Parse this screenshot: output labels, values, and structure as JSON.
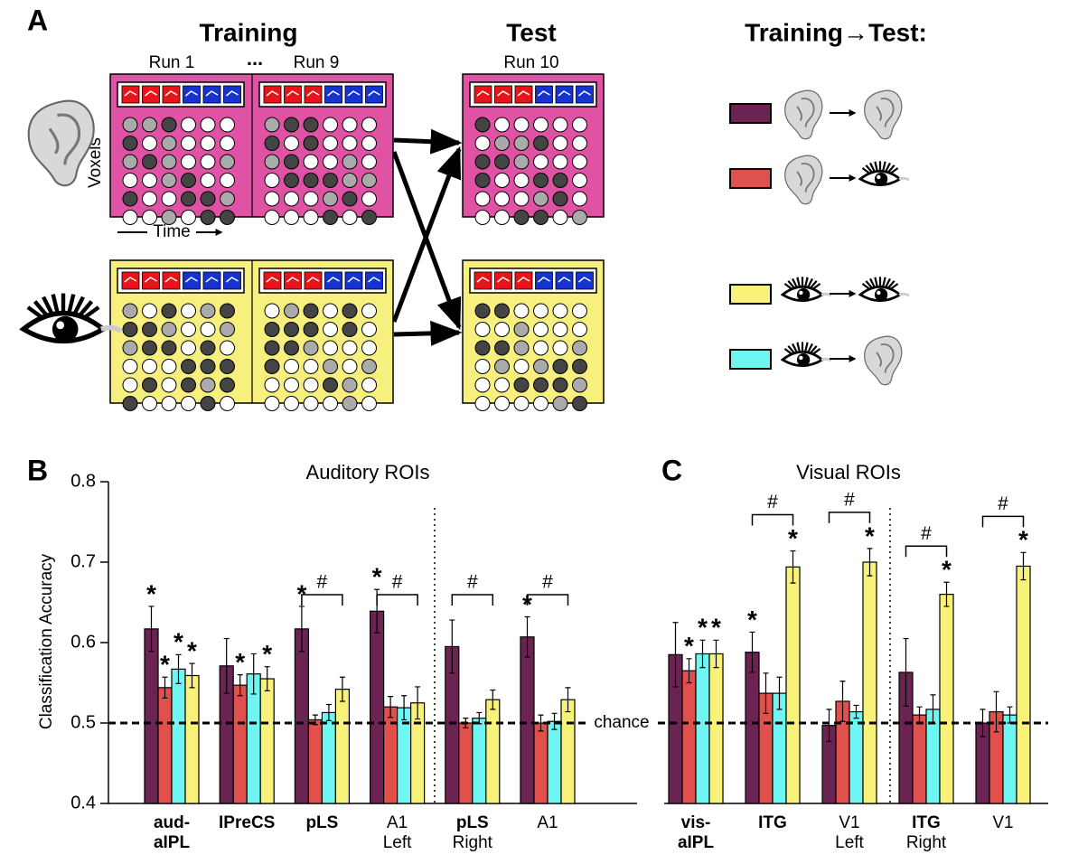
{
  "panel_a": {
    "label": "A",
    "training_title": "Training",
    "test_title": "Test",
    "legend_title": "Training→Test:",
    "runs": [
      "Run 1",
      "...",
      "Run 9",
      "Run 10"
    ],
    "y_label": "Voxels",
    "x_label": "Time"
  },
  "chart_data": [
    {
      "type": "bar",
      "panel": "B",
      "title": "Auditory ROIs",
      "y_label": "Classification Accuracy",
      "categories": [
        [
          "aud-",
          "aIPL"
        ],
        [
          "IPreCS"
        ],
        [
          "pLS"
        ],
        [
          "A1"
        ],
        [
          "pLS"
        ],
        [
          "A1"
        ]
      ],
      "category_bold": [
        true,
        true,
        true,
        false,
        true,
        false
      ],
      "sublabels": [
        null,
        null,
        null,
        "Left",
        "Right",
        null
      ],
      "brackets": [
        null,
        null,
        "#",
        "#",
        "#",
        "#"
      ],
      "ylim": [
        0.4,
        0.8
      ],
      "yticks": [
        0.4,
        0.5,
        0.6,
        0.7,
        0.8
      ],
      "reference_line": {
        "value": 0.5,
        "label": "chance"
      },
      "series": [
        {
          "color": "#6b2451",
          "values": [
            0.617,
            0.571,
            0.617,
            0.639,
            0.595,
            0.607
          ],
          "errors": [
            0.028,
            0.034,
            0.028,
            0.027,
            0.033,
            0.025
          ],
          "markers": [
            "*",
            null,
            "*",
            "*",
            null,
            "*"
          ]
        },
        {
          "color": "#e0514e",
          "values": [
            0.544,
            0.547,
            0.504,
            0.52,
            0.5,
            0.5
          ],
          "errors": [
            0.013,
            0.013,
            0.006,
            0.013,
            0.006,
            0.01
          ],
          "markers": [
            "*",
            "*",
            null,
            null,
            null,
            null
          ]
        },
        {
          "color": "#6ff5f2",
          "values": [
            0.567,
            0.561,
            0.513,
            0.519,
            0.506,
            0.502
          ],
          "errors": [
            0.018,
            0.025,
            0.01,
            0.015,
            0.007,
            0.01
          ],
          "markers": [
            "*",
            null,
            null,
            null,
            null,
            null
          ]
        },
        {
          "color": "#f8f27a",
          "values": [
            0.559,
            0.555,
            0.542,
            0.525,
            0.529,
            0.529
          ],
          "errors": [
            0.015,
            0.015,
            0.015,
            0.02,
            0.012,
            0.015
          ],
          "markers": [
            "*",
            "*",
            null,
            null,
            null,
            null
          ]
        }
      ]
    },
    {
      "type": "bar",
      "panel": "C",
      "title": "Visual ROIs",
      "categories": [
        [
          "vis-",
          "aIPL"
        ],
        [
          "ITG"
        ],
        [
          "V1"
        ],
        [
          "ITG"
        ],
        [
          "V1"
        ]
      ],
      "category_bold": [
        true,
        true,
        false,
        true,
        false
      ],
      "sublabels": [
        null,
        null,
        "Left",
        "Right",
        null
      ],
      "brackets": [
        null,
        "#",
        "#",
        "#",
        "#"
      ],
      "ylim": [
        0.4,
        0.8
      ],
      "series": [
        {
          "color": "#6b2451",
          "values": [
            0.585,
            0.588,
            0.497,
            0.563,
            0.5
          ],
          "errors": [
            0.04,
            0.025,
            0.02,
            0.042,
            0.017
          ],
          "markers": [
            null,
            "*",
            null,
            null,
            null
          ]
        },
        {
          "color": "#e0514e",
          "values": [
            0.565,
            0.537,
            0.527,
            0.51,
            0.514
          ],
          "errors": [
            0.015,
            0.025,
            0.025,
            0.01,
            0.025
          ],
          "markers": [
            "*",
            null,
            null,
            null,
            null
          ]
        },
        {
          "color": "#6ff5f2",
          "values": [
            0.586,
            0.537,
            0.514,
            0.517,
            0.51
          ],
          "errors": [
            0.017,
            0.02,
            0.008,
            0.018,
            0.01
          ],
          "markers": [
            "*",
            null,
            null,
            null,
            null
          ]
        },
        {
          "color": "#f8f27a",
          "values": [
            0.586,
            0.694,
            0.7,
            0.66,
            0.695
          ],
          "errors": [
            0.017,
            0.02,
            0.017,
            0.015,
            0.017
          ],
          "markers": [
            "*",
            "*",
            "*",
            "*",
            "*"
          ]
        }
      ]
    }
  ]
}
